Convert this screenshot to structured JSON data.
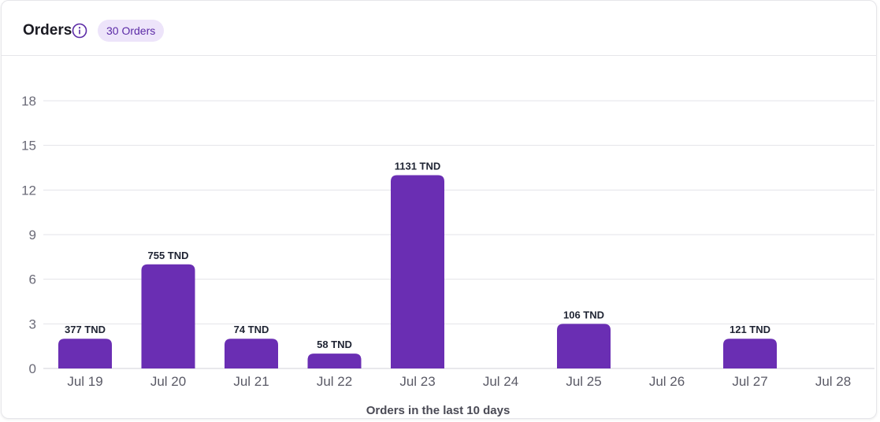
{
  "header": {
    "title": "Orders",
    "badge": "30 Orders",
    "info_icon": "info-icon"
  },
  "colors": {
    "bar": "#6a2eb3",
    "grid": "#e3e3e8",
    "badge_bg": "#ede4fa",
    "badge_text": "#5b2aa6"
  },
  "chart_data": {
    "type": "bar",
    "categories": [
      "Jul 19",
      "Jul 20",
      "Jul 21",
      "Jul 22",
      "Jul 23",
      "Jul 24",
      "Jul 25",
      "Jul 26",
      "Jul 27",
      "Jul 28"
    ],
    "values": [
      2,
      7,
      2,
      1,
      13,
      0,
      3,
      0,
      2,
      0
    ],
    "data_labels": [
      "377 TND",
      "755 TND",
      "74 TND",
      "58 TND",
      "1131 TND",
      "",
      "106 TND",
      "",
      "121 TND",
      ""
    ],
    "xlabel": "Orders in the last 10 days",
    "ylabel": "",
    "ylim": [
      0,
      18
    ],
    "yticks": [
      0,
      3,
      6,
      9,
      12,
      15,
      18
    ],
    "grid": true,
    "legend": "none"
  }
}
